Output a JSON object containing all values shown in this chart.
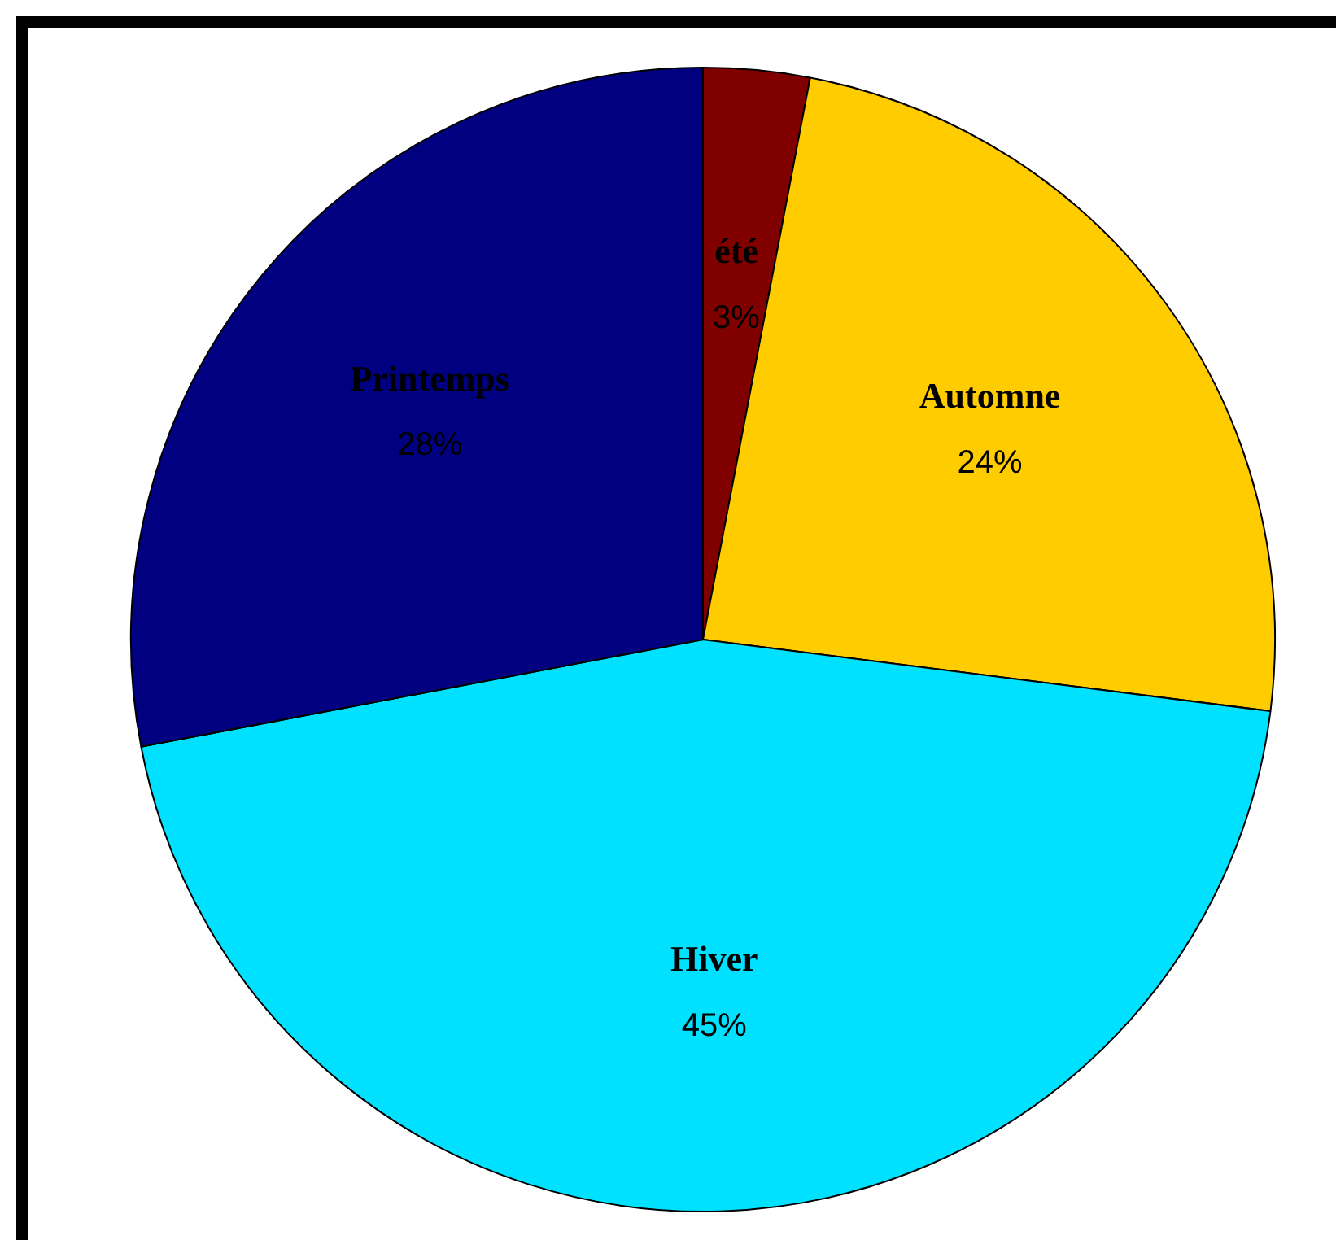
{
  "chart_data": {
    "type": "pie",
    "categories": [
      "été",
      "Automne",
      "Hiver",
      "Printemps"
    ],
    "values": [
      3,
      24,
      45,
      28
    ],
    "value_labels": [
      "3%",
      "24%",
      "45%",
      "28%"
    ],
    "colors": [
      "#800000",
      "#ffcc00",
      "#00e0ff",
      "#000080"
    ],
    "legend": false
  }
}
